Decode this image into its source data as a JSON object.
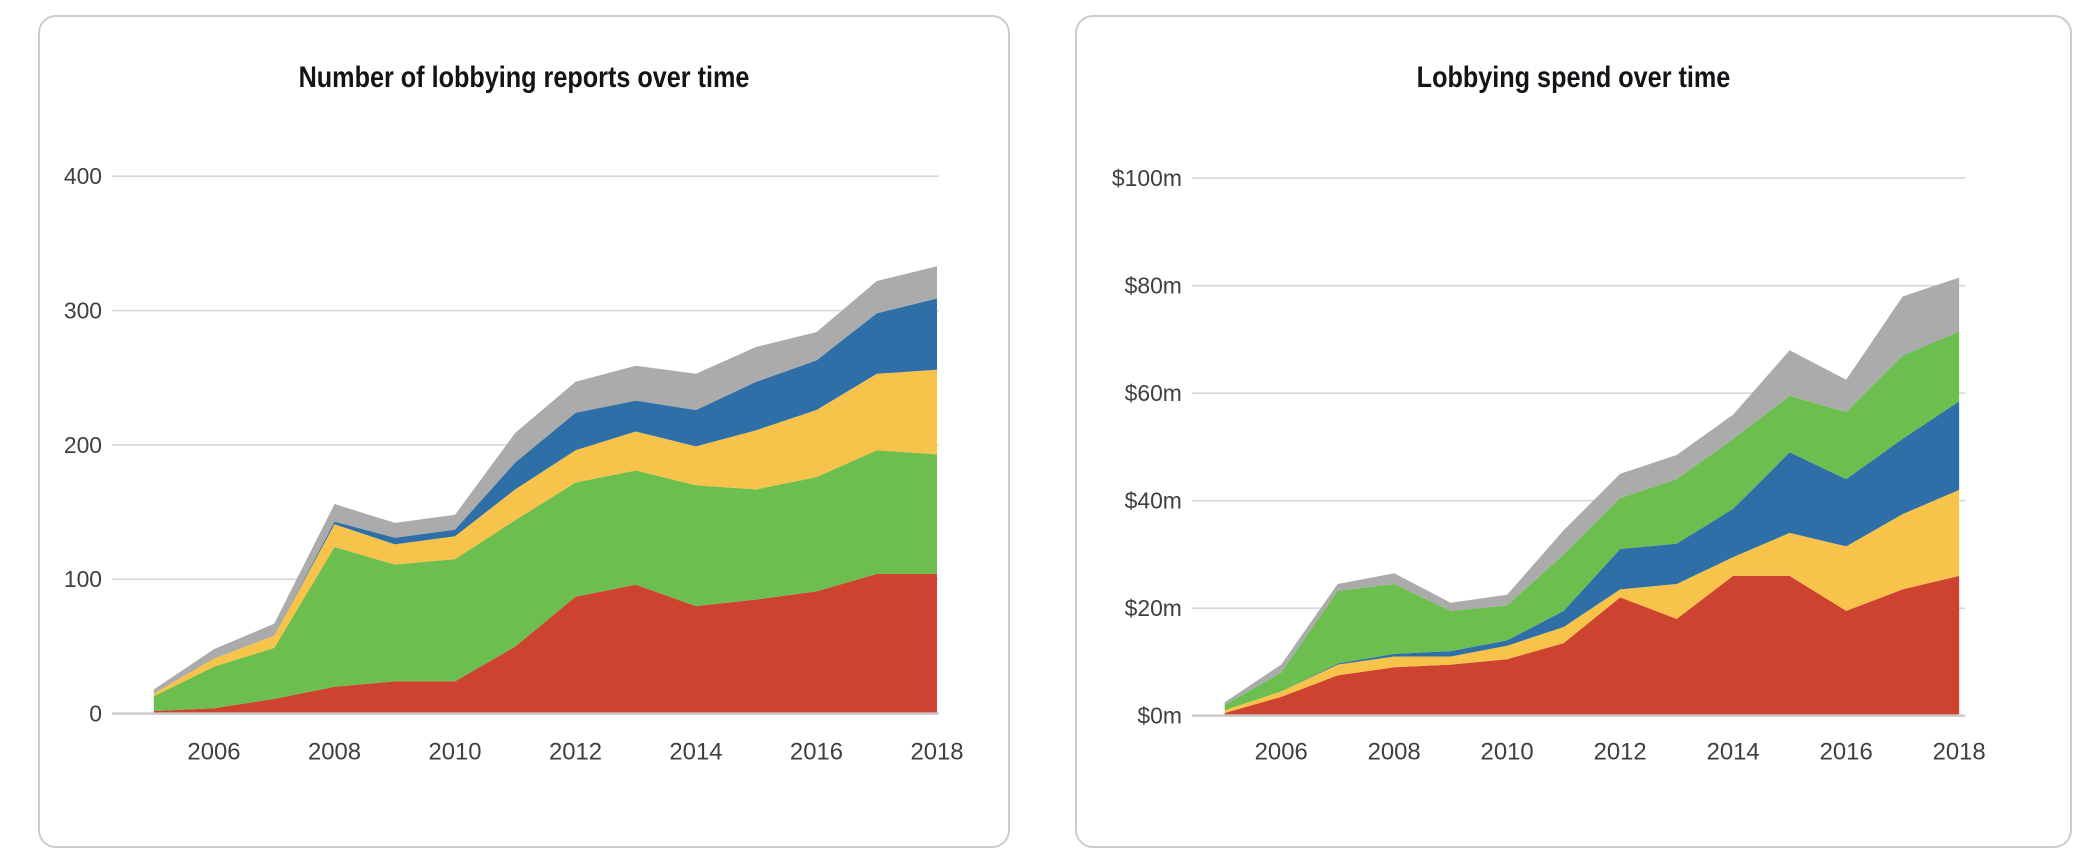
{
  "page": {
    "background": "#ffffff"
  },
  "theme": {
    "card_border": "#cccccc",
    "grid_color": "#d7d7d7",
    "axis_line_color": "#c9c9c9",
    "tick_label_color": "#3f3f3f",
    "title_color": "#141418",
    "series_colors": {
      "red": "#ce4330",
      "green": "#6cbf4e",
      "yellow": "#f7c34a",
      "blue": "#2e6fa8",
      "gray": "#ababab"
    }
  },
  "chart_data": [
    {
      "type": "area",
      "stacked": true,
      "title": "Number of lobbying reports over time",
      "ylabel": "",
      "xlabel": "",
      "grid": true,
      "legend": false,
      "ylim": [
        0,
        400
      ],
      "x": [
        2005,
        2006,
        2007,
        2008,
        2009,
        2010,
        2011,
        2012,
        2013,
        2014,
        2015,
        2016,
        2017,
        2018
      ],
      "x_tick_values": [
        2006,
        2008,
        2010,
        2012,
        2014,
        2016,
        2018
      ],
      "x_tick_labels": [
        "2006",
        "2008",
        "2010",
        "2012",
        "2014",
        "2016",
        "2018"
      ],
      "y_tick_values": [
        0,
        100,
        200,
        300,
        400
      ],
      "y_tick_labels": [
        "0",
        "100",
        "200",
        "300",
        "400"
      ],
      "series": [
        {
          "name": "red",
          "color": "#ce4330",
          "values": [
            2,
            4,
            11,
            20,
            24,
            24,
            50,
            87,
            96,
            80,
            85,
            91,
            104,
            104
          ]
        },
        {
          "name": "green",
          "color": "#6cbf4e",
          "values": [
            11,
            31,
            38,
            104,
            87,
            91,
            94,
            85,
            85,
            90,
            82,
            85,
            92,
            89
          ]
        },
        {
          "name": "yellow",
          "color": "#f7c34a",
          "values": [
            2,
            6,
            9,
            17,
            15,
            17,
            23,
            24,
            29,
            29,
            44,
            50,
            57,
            63
          ]
        },
        {
          "name": "blue",
          "color": "#2e6fa8",
          "values": [
            0,
            0,
            0,
            2,
            5,
            5,
            20,
            28,
            23,
            27,
            36,
            37,
            45,
            53
          ]
        },
        {
          "name": "gray",
          "color": "#ababab",
          "values": [
            3,
            7,
            9,
            13,
            11,
            11,
            22,
            23,
            26,
            27,
            26,
            21,
            24,
            24
          ]
        }
      ],
      "totals": [
        18,
        48,
        67,
        156,
        142,
        148,
        209,
        247,
        259,
        253,
        273,
        284,
        322,
        333
      ]
    },
    {
      "type": "area",
      "stacked": true,
      "title": "Lobbying spend over time",
      "ylabel": "",
      "xlabel": "",
      "grid": true,
      "legend": false,
      "ylim": [
        0,
        100
      ],
      "unit": "$m",
      "x": [
        2005,
        2006,
        2007,
        2008,
        2009,
        2010,
        2011,
        2012,
        2013,
        2014,
        2015,
        2016,
        2017,
        2018
      ],
      "x_tick_values": [
        2006,
        2008,
        2010,
        2012,
        2014,
        2016,
        2018
      ],
      "x_tick_labels": [
        "2006",
        "2008",
        "2010",
        "2012",
        "2014",
        "2016",
        "2018"
      ],
      "y_tick_values": [
        0,
        20,
        40,
        60,
        80,
        100
      ],
      "y_tick_labels": [
        "$0m",
        "$20m",
        "$40m",
        "$60m",
        "$80m",
        "$100m"
      ],
      "series": [
        {
          "name": "red",
          "color": "#ce4330",
          "values": [
            0.5,
            3.5,
            7.5,
            9,
            9.5,
            10.5,
            13.5,
            22,
            18,
            26,
            26,
            19.5,
            23.5,
            26
          ]
        },
        {
          "name": "yellow",
          "color": "#f7c34a",
          "values": [
            0.5,
            1,
            2,
            2,
            1.5,
            2.5,
            3,
            1.5,
            6.5,
            3.5,
            8,
            12,
            14,
            16
          ]
        },
        {
          "name": "blue",
          "color": "#2e6fa8",
          "values": [
            0,
            0,
            0.2,
            0.5,
            1,
            1,
            3,
            7.5,
            7.5,
            9,
            15,
            12.5,
            14,
            16.5
          ]
        },
        {
          "name": "green",
          "color": "#6cbf4e",
          "values": [
            1,
            3.5,
            13.5,
            13,
            7.5,
            6.5,
            10.5,
            9.5,
            12,
            13,
            10.5,
            12.5,
            15.5,
            13
          ]
        },
        {
          "name": "gray",
          "color": "#ababab",
          "values": [
            0.5,
            1.5,
            1.3,
            2,
            1.5,
            2,
            4.5,
            4.5,
            4.5,
            4.5,
            8.5,
            6,
            11,
            10
          ]
        }
      ],
      "totals": [
        2.5,
        9.5,
        24.5,
        26.5,
        21,
        22.5,
        34.5,
        45,
        48.5,
        56,
        68,
        62.5,
        78,
        81.5
      ]
    }
  ]
}
